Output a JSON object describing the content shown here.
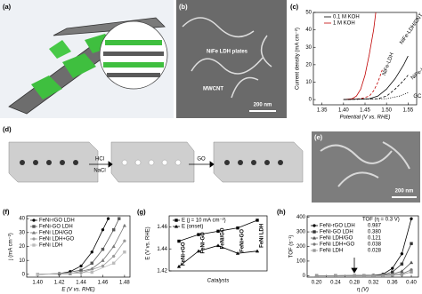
{
  "panels": {
    "a": {
      "label": "(a)"
    },
    "b": {
      "label": "(b)",
      "texts": [
        "NiFe LDH plates",
        "MWCNT"
      ],
      "scale_bar": "200 nm"
    },
    "c": {
      "label": "(c)"
    },
    "d": {
      "label": "(d)",
      "arrow1_top": "HCl",
      "arrow1_bottom": "NaCl",
      "arrow2_top": "GO"
    },
    "e": {
      "label": "(e)",
      "scale_bar": "200 nm"
    },
    "f": {
      "label": "(f)"
    },
    "g": {
      "label": "(g)"
    },
    "h": {
      "label": "(h)"
    }
  },
  "chart_data": [
    {
      "type": "line",
      "xlabel": "Potential (V vs. RHE)",
      "ylabel": "Current density (mA cm⁻²)",
      "xlim": [
        1.33,
        1.57
      ],
      "xticks": [
        1.35,
        {
          "value": 1.4,
          "label": "1.40"
        },
        1.45,
        {
          "value": 1.5,
          "label": "1.50"
        },
        1.55
      ],
      "ylim": [
        -3,
        50
      ],
      "yticks": [
        0,
        10,
        20,
        30,
        40,
        50
      ],
      "legend": [
        {
          "name": "0.1 M KOH",
          "color": "#000000"
        },
        {
          "name": "1 M KOH",
          "color": "#c00000"
        }
      ],
      "legend_corner": "upper left",
      "series": [
        {
          "label": "NiFe-LDH/CNT",
          "color": "#c00000",
          "dash": "solid",
          "x": [
            1.4,
            1.42,
            1.43,
            1.44,
            1.45,
            1.46,
            1.47,
            1.475
          ],
          "values": [
            0,
            0.5,
            2,
            6,
            14,
            26,
            40,
            50
          ]
        },
        {
          "label": "NiFe-LDH",
          "color": "#c00000",
          "dash": "dashed",
          "x": [
            1.4,
            1.44,
            1.46,
            1.47,
            1.48,
            1.49
          ],
          "values": [
            0,
            0.5,
            2,
            5,
            10,
            17
          ]
        },
        {
          "label": "NiFe-LDH/CNT",
          "color": "#000000",
          "dash": "solid",
          "x": [
            1.4,
            1.46,
            1.48,
            1.5,
            1.52,
            1.54,
            1.55
          ],
          "values": [
            0,
            0.5,
            2,
            6,
            12,
            20,
            25
          ]
        },
        {
          "label": "NiFe-LDH",
          "color": "#000000",
          "dash": "dashed",
          "x": [
            1.4,
            1.48,
            1.5,
            1.52,
            1.54,
            1.55
          ],
          "values": [
            0,
            0.5,
            2,
            6,
            11,
            14
          ]
        },
        {
          "label": "GC",
          "color": "#000000",
          "dash": "dotted",
          "x": [
            1.4,
            1.5,
            1.53,
            1.55
          ],
          "values": [
            0,
            0.5,
            2,
            4
          ]
        }
      ]
    },
    {
      "type": "line",
      "xlabel": "E (V vs. RHE)",
      "ylabel": "j (mA cm⁻²)",
      "xlim": [
        1.39,
        1.485
      ],
      "xticks": [
        {
          "value": 1.4,
          "label": "1.40"
        },
        1.42,
        1.44,
        1.46,
        1.48
      ],
      "ylim": [
        -2,
        42
      ],
      "yticks": [
        0,
        10,
        20,
        30,
        40
      ],
      "legend_corner": "upper left",
      "series": [
        {
          "name": "FeNi-rGO LDH",
          "color": "#000000",
          "marker": "circle",
          "x": [
            1.4,
            1.42,
            1.43,
            1.44,
            1.45,
            1.46,
            1.465
          ],
          "values": [
            0,
            0.5,
            2,
            6,
            16,
            32,
            40
          ]
        },
        {
          "name": "FeNi-GO LDH",
          "color": "#555555",
          "marker": "square",
          "x": [
            1.4,
            1.42,
            1.44,
            1.45,
            1.46,
            1.47,
            1.475
          ],
          "values": [
            0,
            0.3,
            3,
            8,
            18,
            32,
            40
          ]
        },
        {
          "name": "FeNi LDH/GO",
          "color": "#777777",
          "marker": "triangle",
          "x": [
            1.4,
            1.43,
            1.45,
            1.46,
            1.47,
            1.48
          ],
          "values": [
            0,
            0.5,
            4,
            10,
            20,
            35
          ]
        },
        {
          "name": "FeNi LDH+GO",
          "color": "#999999",
          "marker": "circle",
          "x": [
            1.4,
            1.44,
            1.46,
            1.47,
            1.48
          ],
          "values": [
            0,
            1,
            6,
            13,
            24
          ]
        },
        {
          "name": "FeNi LDH",
          "color": "#bbbbbb",
          "marker": "square",
          "x": [
            1.4,
            1.45,
            1.47,
            1.48
          ],
          "values": [
            0,
            1.5,
            8,
            16
          ]
        }
      ]
    },
    {
      "type": "line",
      "xlabel": "Catalysts",
      "ylabel": "E (V vs. RHE)",
      "categories": [
        "FeNi-rGO",
        "FeNi-GO",
        "FeNi/GO",
        "FeNi+GO",
        "FeNi LDH"
      ],
      "ylim": [
        1.42,
        1.47
      ],
      "yticks": [
        1.42,
        1.44,
        1.46
      ],
      "legend_corner": "upper left",
      "series": [
        {
          "name": "E (j = 10 mA cm⁻²)",
          "color": "#000000",
          "marker": "square",
          "values": [
            1.447,
            1.453,
            1.456,
            1.459,
            1.466
          ]
        },
        {
          "name": "E (onset)",
          "color": "#000000",
          "marker": "triangle",
          "values": [
            1.424,
            1.438,
            1.443,
            1.436,
            1.438
          ]
        }
      ]
    },
    {
      "type": "line",
      "xlabel": "η (V)",
      "ylabel": "TOF (s⁻¹)",
      "xlim": [
        0.18,
        0.415
      ],
      "xticks": [
        {
          "value": 0.2,
          "label": "0.20"
        },
        0.22,
        0.24,
        0.26,
        0.28,
        {
          "value": 0.3,
          "label": "0.30"
        },
        0.32,
        0.34,
        0.36,
        0.38,
        {
          "value": 0.4,
          "label": "0.40"
        }
      ],
      "ylim": [
        -10,
        410
      ],
      "yticks": [
        0,
        100,
        200,
        300,
        400
      ],
      "legend_corner": "upper left",
      "legend_title": "TOF (η = 0.3 V)",
      "series": [
        {
          "name": "FeNi-rGO LDH",
          "tof": "0.987",
          "color": "#000000",
          "marker": "circle",
          "x": [
            0.2,
            0.24,
            0.28,
            0.3,
            0.32,
            0.34,
            0.36,
            0.38,
            0.4
          ],
          "values": [
            0,
            0,
            1,
            1,
            3,
            10,
            50,
            150,
            390
          ]
        },
        {
          "name": "FeNi-GO LDH",
          "tof": "0.380",
          "color": "#333333",
          "marker": "square",
          "x": [
            0.2,
            0.24,
            0.28,
            0.3,
            0.32,
            0.34,
            0.36,
            0.38,
            0.4
          ],
          "values": [
            0,
            0,
            0,
            0.4,
            2,
            6,
            25,
            80,
            220
          ]
        },
        {
          "name": "FeNi LDH/GO",
          "tof": "0.121",
          "color": "#555555",
          "marker": "triangle",
          "x": [
            0.2,
            0.24,
            0.28,
            0.3,
            0.32,
            0.34,
            0.36,
            0.38,
            0.4
          ],
          "values": [
            0,
            0,
            0,
            0,
            1,
            3,
            10,
            30,
            90
          ]
        },
        {
          "name": "FeNi LDH+GO",
          "tof": "0.038",
          "color": "#777777",
          "marker": "circle",
          "x": [
            0.2,
            0.24,
            0.28,
            0.3,
            0.32,
            0.34,
            0.36,
            0.38,
            0.4
          ],
          "values": [
            0,
            0,
            0,
            0,
            0.5,
            1,
            4,
            12,
            40
          ]
        },
        {
          "name": "FeNi LDH",
          "tof": "0.028",
          "color": "#999999",
          "marker": "square",
          "x": [
            0.2,
            0.24,
            0.28,
            0.3,
            0.32,
            0.34,
            0.36,
            0.38,
            0.4
          ],
          "values": [
            0,
            0,
            0,
            0,
            0.3,
            1,
            3,
            8,
            25
          ]
        }
      ]
    }
  ]
}
